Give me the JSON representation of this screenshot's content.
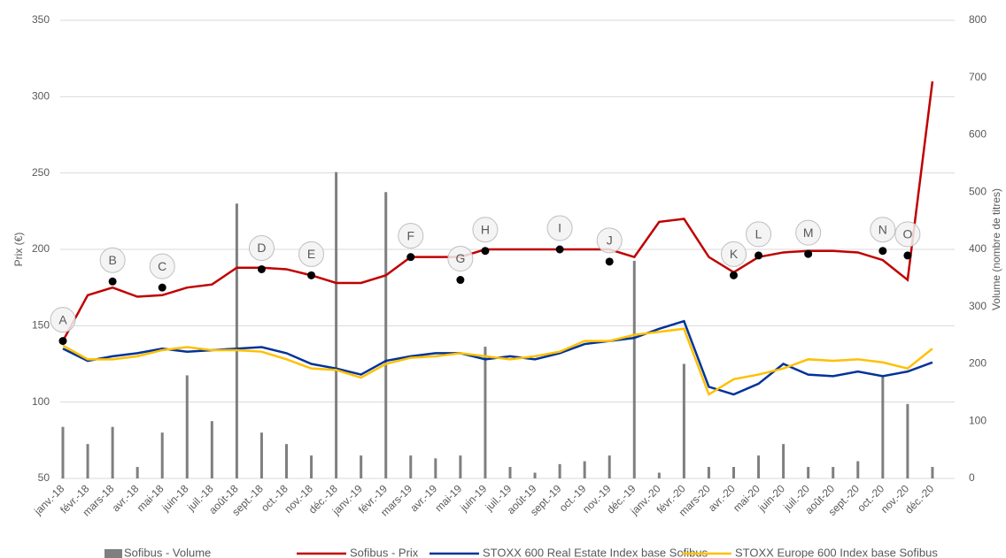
{
  "chart_data": {
    "type": "line",
    "categories": [
      "janv.-18",
      "févr.-18",
      "mars-18",
      "avr.-18",
      "mai-18",
      "juin-18",
      "juil.-18",
      "août-18",
      "sept.-18",
      "oct.-18",
      "nov.-18",
      "déc.-18",
      "janv.-19",
      "févr.-19",
      "mars-19",
      "avr.-19",
      "mai-19",
      "juin-19",
      "juil.-19",
      "août-19",
      "sept.-19",
      "oct.-19",
      "nov.-19",
      "déc.-19",
      "janv.-20",
      "févr.-20",
      "mars-20",
      "avr.-20",
      "mai-20",
      "juin-20",
      "juil.-20",
      "août-20",
      "sept.-20",
      "oct.-20",
      "nov.-20",
      "déc.-20"
    ],
    "series": [
      {
        "name": "Sofibus - Volume",
        "kind": "bar",
        "axis": "y2",
        "color": "#7f7f7f",
        "values": [
          90,
          60,
          90,
          20,
          80,
          180,
          100,
          480,
          80,
          60,
          40,
          535,
          40,
          500,
          40,
          35,
          40,
          230,
          20,
          10,
          25,
          30,
          40,
          380,
          10,
          200,
          20,
          20,
          40,
          60,
          20,
          20,
          30,
          180,
          130,
          20
        ]
      },
      {
        "name": "Sofibus - Prix",
        "color": "#c00000",
        "values": [
          140,
          170,
          175,
          169,
          170,
          175,
          177,
          188,
          188,
          187,
          183,
          178,
          178,
          183,
          195,
          195,
          195,
          200,
          200,
          200,
          200,
          200,
          200,
          195,
          218,
          220,
          195,
          185,
          195,
          198,
          199,
          199,
          198,
          193,
          180,
          310
        ]
      },
      {
        "name": "STOXX 600 Real Estate Index base Sofibus",
        "color": "#003399",
        "values": [
          135,
          127,
          130,
          132,
          135,
          133,
          134,
          135,
          136,
          132,
          125,
          122,
          118,
          127,
          130,
          132,
          132,
          128,
          130,
          128,
          132,
          138,
          140,
          142,
          148,
          153,
          110,
          105,
          112,
          125,
          118,
          117,
          120,
          117,
          120,
          126
        ]
      },
      {
        "name": "STOXX Europe 600 Index base Sofibus",
        "color": "#ffc000",
        "values": [
          137,
          128,
          128,
          130,
          134,
          136,
          134,
          134,
          133,
          128,
          122,
          121,
          116,
          125,
          129,
          130,
          132,
          130,
          128,
          130,
          133,
          140,
          140,
          144,
          146,
          148,
          105,
          115,
          118,
          122,
          128,
          127,
          128,
          126,
          122,
          135
        ]
      }
    ],
    "annotations": [
      {
        "label": "A",
        "x": "janv.-18",
        "y": 140
      },
      {
        "label": "B",
        "x": "mars-18",
        "y": 179
      },
      {
        "label": "C",
        "x": "mai-18",
        "y": 175
      },
      {
        "label": "D",
        "x": "sept.-18",
        "y": 187
      },
      {
        "label": "E",
        "x": "nov.-18",
        "y": 183
      },
      {
        "label": "F",
        "x": "mars-19",
        "y": 195
      },
      {
        "label": "G",
        "x": "mai-19",
        "y": 180
      },
      {
        "label": "H",
        "x": "juin-19",
        "y": 199
      },
      {
        "label": "I",
        "x": "sept.-19",
        "y": 200
      },
      {
        "label": "J",
        "x": "nov.-19",
        "y": 192
      },
      {
        "label": "K",
        "x": "avr.-20",
        "y": 183
      },
      {
        "label": "L",
        "x": "mai-20",
        "y": 196
      },
      {
        "label": "M",
        "x": "juil.-20",
        "y": 197
      },
      {
        "label": "N",
        "x": "oct.-20",
        "y": 199
      },
      {
        "label": "O",
        "x": "nov.-20",
        "y": 196
      }
    ],
    "ylabel": "Prix (€)",
    "y2label": "Volume (nombre de titres)",
    "ylim": [
      50,
      350
    ],
    "yticks": [
      50,
      100,
      150,
      200,
      250,
      300,
      350
    ],
    "y2lim": [
      0,
      800
    ],
    "y2ticks": [
      0,
      100,
      200,
      300,
      400,
      500,
      600,
      700,
      800
    ],
    "grid": true,
    "legend": "bottom"
  }
}
